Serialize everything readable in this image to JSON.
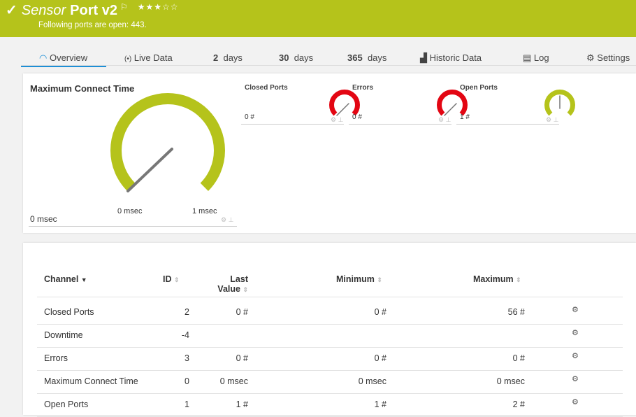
{
  "header": {
    "status_icon": "check-icon",
    "title_prefix": "Sensor",
    "title": "Port v2",
    "flag_icon": "flag-icon",
    "rating": 3,
    "rating_max": 5,
    "stars": "★★★☆☆",
    "message": "Following ports are open: 443.",
    "color": "#b5c31b"
  },
  "tabs": [
    {
      "label": "Overview",
      "icon": "gauge-icon"
    },
    {
      "label": "Live Data",
      "icon": "broadcast-icon"
    },
    {
      "num": "2",
      "label": "days"
    },
    {
      "num": "30",
      "label": "days"
    },
    {
      "num": "365",
      "label": "days"
    },
    {
      "label": "Historic Data",
      "icon": "chart-icon"
    },
    {
      "label": "Log",
      "icon": "list-icon"
    },
    {
      "label": "Settings",
      "icon": "gear-icon"
    }
  ],
  "gauges": {
    "main": {
      "title": "Maximum Connect Time",
      "value": "0 msec",
      "min_label": "0 msec",
      "max_label": "1 msec",
      "color": "#b5c31b"
    },
    "closed": {
      "title": "Closed Ports",
      "value": "0 #",
      "color": "#e30613"
    },
    "errors": {
      "title": "Errors",
      "value": "0 #",
      "color": "#e30613"
    },
    "open": {
      "title": "Open Ports",
      "value": "1 #",
      "color": "#b5c31b"
    }
  },
  "table": {
    "headers": {
      "channel": "Channel",
      "id": "ID",
      "last1": "Last",
      "last2": "Value",
      "min": "Minimum",
      "max": "Maximum"
    },
    "rows": [
      {
        "channel": "Closed Ports",
        "id": "2",
        "last": "0 #",
        "min": "0 #",
        "max": "56 #"
      },
      {
        "channel": "Downtime",
        "id": "-4",
        "last": "",
        "min": "",
        "max": ""
      },
      {
        "channel": "Errors",
        "id": "3",
        "last": "0 #",
        "min": "0 #",
        "max": "0 #"
      },
      {
        "channel": "Maximum Connect Time",
        "id": "0",
        "last": "0 msec",
        "min": "0 msec",
        "max": "0 msec"
      },
      {
        "channel": "Open Ports",
        "id": "1",
        "last": "1 #",
        "min": "1 #",
        "max": "2 #"
      }
    ]
  }
}
